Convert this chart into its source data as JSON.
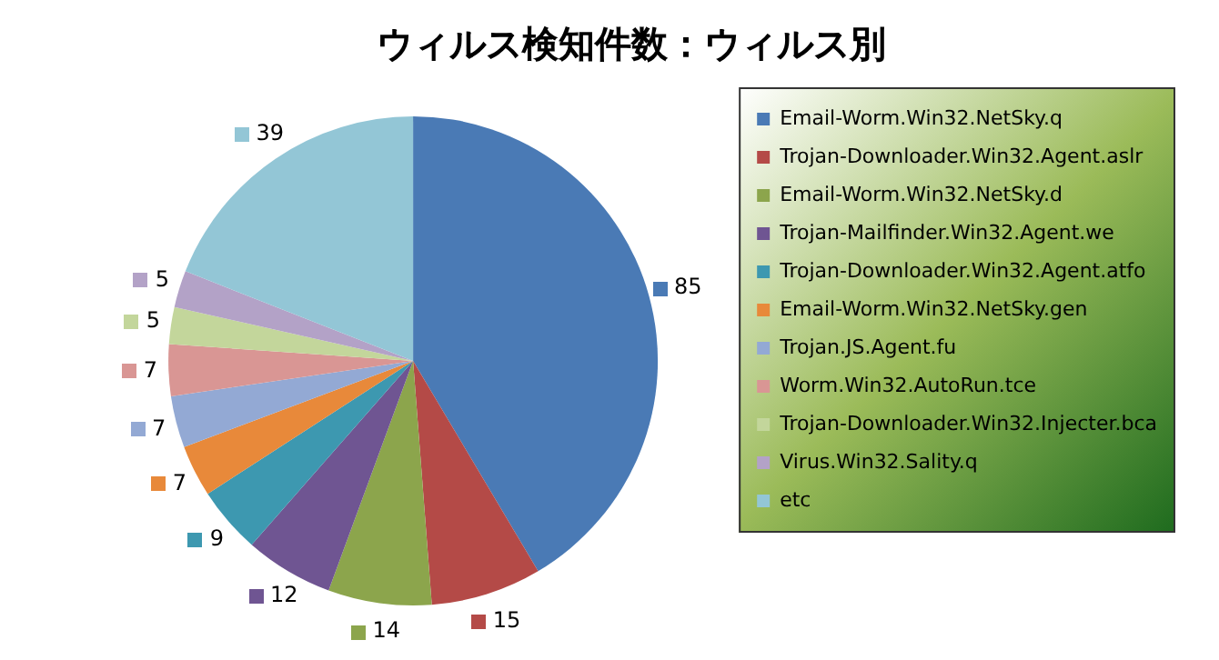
{
  "chart_data": {
    "type": "pie",
    "title": "ウィルス検知件数：ウィルス別",
    "categories": [
      "Email-Worm.Win32.NetSky.q",
      "Trojan-Downloader.Win32.Agent.aslr",
      "Email-Worm.Win32.NetSky.d",
      "Trojan-Mailfinder.Win32.Agent.we",
      "Trojan-Downloader.Win32.Agent.atfo",
      "Email-Worm.Win32.NetSky.gen",
      "Trojan.JS.Agent.fu",
      "Worm.Win32.AutoRun.tce",
      "Trojan-Downloader.Win32.Injecter.bca",
      "Virus.Win32.Sality.q",
      "etc"
    ],
    "values": [
      85,
      15,
      14,
      12,
      9,
      7,
      7,
      7,
      5,
      5,
      39
    ],
    "colors": [
      "#4a7ab5",
      "#b44a47",
      "#8ca54c",
      "#6f5592",
      "#3d98b0",
      "#e8893a",
      "#93a9d4",
      "#d99694",
      "#c3d69b",
      "#b3a2c7",
      "#93c6d6"
    ],
    "legend": "right",
    "data_labels": true
  }
}
